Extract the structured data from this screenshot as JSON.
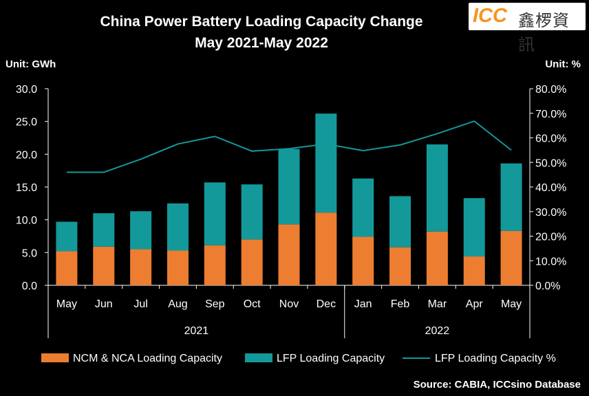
{
  "header": {
    "title_line1": "China Power Battery Loading Capacity Change",
    "title_line2": "May 2021-May 2022",
    "unit_left": "Unit: GWh",
    "unit_right": "Unit: %",
    "logo_text": "ICC",
    "logo_cn": "鑫椤資訊",
    "source": "Source: CABIA, ICCsino Database"
  },
  "colors": {
    "background": "#000000",
    "ncm": "#ed7d31",
    "lfp": "#14999a",
    "lfp_pct_line": "#14999a",
    "axis": "#ffffff"
  },
  "chart_data": {
    "type": "bar",
    "stacked": true,
    "categories": [
      "May",
      "Jun",
      "Jul",
      "Aug",
      "Sep",
      "Oct",
      "Nov",
      "Dec",
      "Jan",
      "Feb",
      "Mar",
      "Apr",
      "May"
    ],
    "year_groups": [
      {
        "label": "2021",
        "count": 8
      },
      {
        "label": "2022",
        "count": 5
      }
    ],
    "series": [
      {
        "name": "NCM & NCA Loading Capacity",
        "type": "bar",
        "values": [
          5.2,
          5.9,
          5.5,
          5.3,
          6.1,
          7.0,
          9.3,
          11.1,
          7.4,
          5.8,
          8.2,
          4.4,
          8.3
        ]
      },
      {
        "name": "LFP Loading Capacity",
        "type": "bar",
        "values": [
          4.5,
          5.1,
          5.8,
          7.2,
          9.6,
          8.4,
          11.5,
          15.1,
          8.9,
          7.8,
          13.3,
          8.9,
          10.3
        ]
      },
      {
        "name": "LFP Loading Capacity %",
        "type": "line",
        "axis": "right",
        "values": [
          46.0,
          46.0,
          51.3,
          57.5,
          60.6,
          54.6,
          55.6,
          57.5,
          54.8,
          57.1,
          61.7,
          66.8,
          55.0
        ]
      }
    ],
    "y_left": {
      "min": 0,
      "max": 30,
      "ticks": [
        "0.0",
        "5.0",
        "10.0",
        "15.0",
        "20.0",
        "25.0",
        "30.0"
      ]
    },
    "y_right": {
      "min": 0,
      "max": 80,
      "ticks": [
        "0.0%",
        "10.0%",
        "20.0%",
        "30.0%",
        "40.0%",
        "50.0%",
        "60.0%",
        "70.0%",
        "80.0%"
      ]
    },
    "grid": false,
    "legend_position": "bottom"
  }
}
